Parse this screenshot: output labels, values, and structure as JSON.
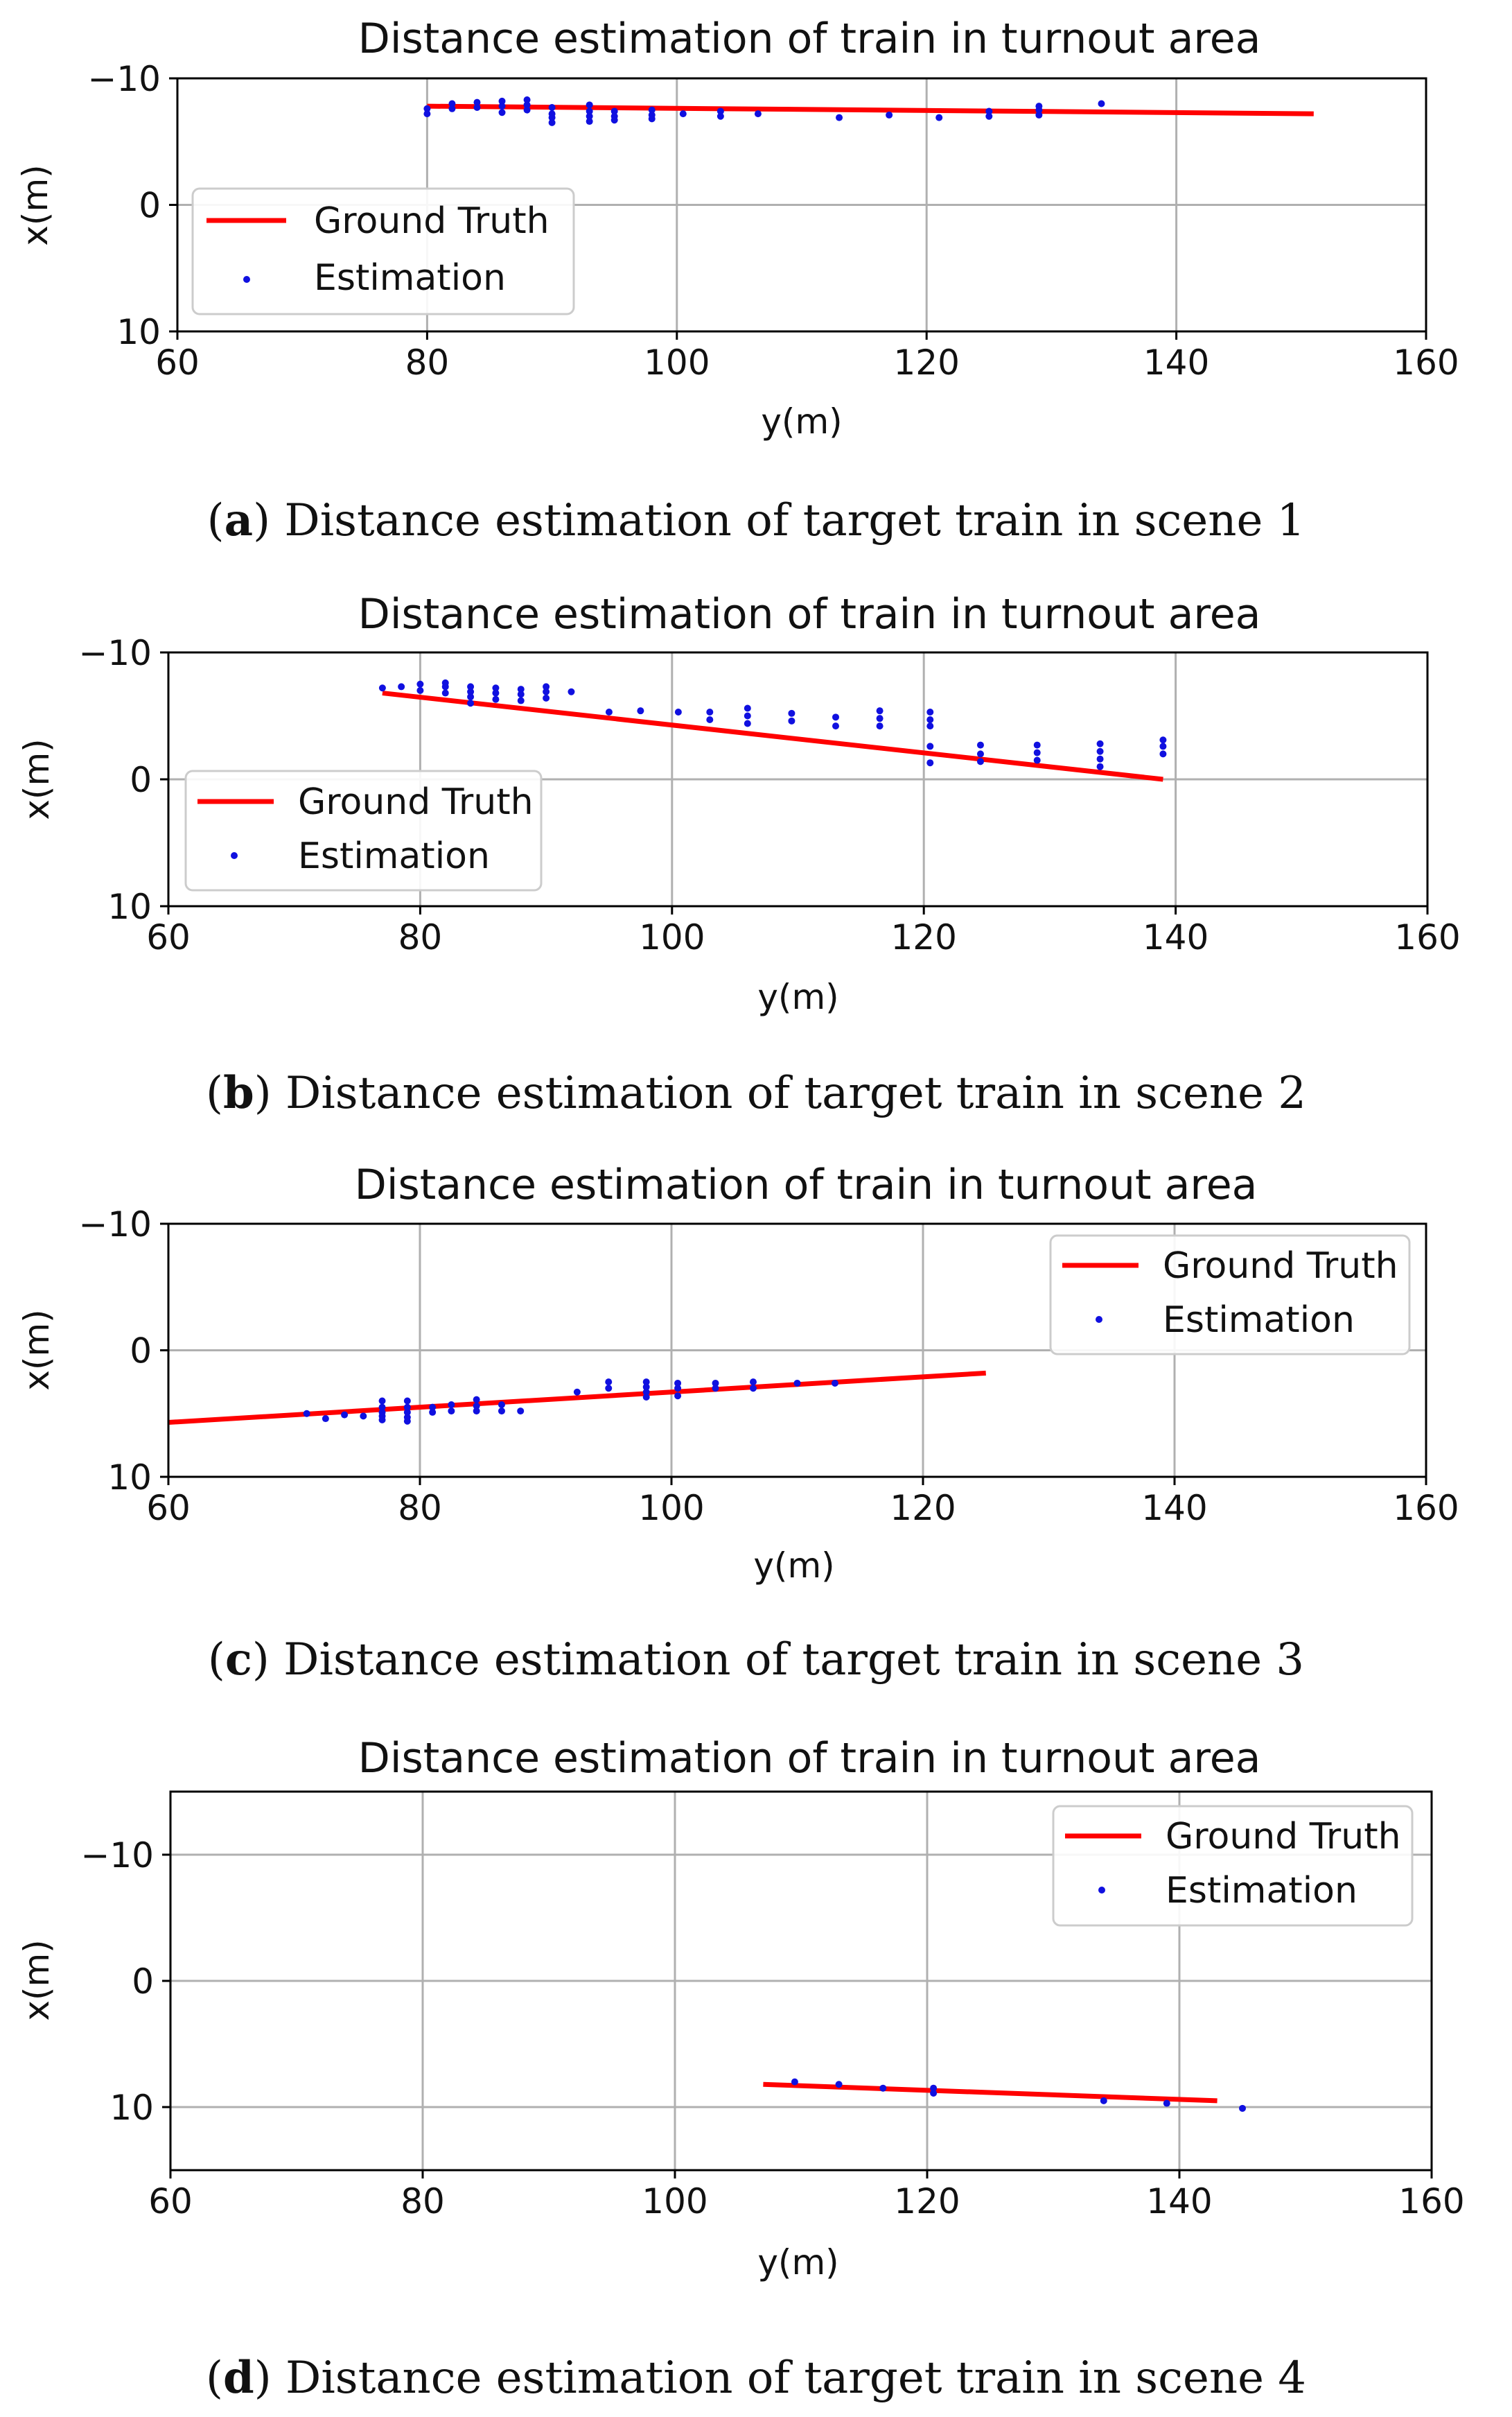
{
  "colors": {
    "ground_truth": "#ff0000",
    "estimation": "#1010e0",
    "grid": "#b0b0b0",
    "axis": "#000000"
  },
  "chart_data": [
    {
      "type": "scatter",
      "title": "Distance estimation of train in turnout area",
      "xlabel": "y(m)",
      "ylabel": "x(m)",
      "xlim": [
        60,
        160
      ],
      "ylim": [
        10,
        -10
      ],
      "xticks": [
        60,
        80,
        100,
        120,
        140,
        160
      ],
      "yticks": [
        -10,
        0,
        10
      ],
      "grid": true,
      "legend_position": "lower-left",
      "caption": {
        "label": "a",
        "text": "Distance estimation of target train in scene 1"
      },
      "series": [
        {
          "name": "Ground Truth",
          "kind": "line",
          "x": [
            80,
            151
          ],
          "y": [
            -7.8,
            -7.2
          ]
        },
        {
          "name": "Estimation",
          "kind": "scatter",
          "x": [
            80,
            80,
            82,
            82,
            84,
            84,
            86,
            86,
            86,
            88,
            88,
            88,
            90,
            90,
            90,
            90,
            93,
            93,
            93,
            93,
            95,
            95,
            95,
            98,
            98,
            98,
            100.5,
            103.5,
            103.5,
            106.5,
            113,
            117,
            121,
            125,
            125,
            129,
            129,
            129,
            134
          ],
          "y": [
            -7.2,
            -7.6,
            -7.6,
            -8.0,
            -7.7,
            -8.1,
            -7.3,
            -7.8,
            -8.2,
            -7.5,
            -7.9,
            -8.3,
            -6.5,
            -6.9,
            -7.2,
            -7.7,
            -6.6,
            -7.0,
            -7.4,
            -7.9,
            -6.7,
            -7.0,
            -7.4,
            -6.8,
            -7.1,
            -7.5,
            -7.2,
            -7.0,
            -7.4,
            -7.2,
            -6.9,
            -7.1,
            -6.9,
            -7.0,
            -7.4,
            -7.1,
            -7.5,
            -7.8,
            -8.0
          ]
        }
      ]
    },
    {
      "type": "scatter",
      "title": "Distance estimation of train in turnout area",
      "xlabel": "y(m)",
      "ylabel": "x(m)",
      "xlim": [
        60,
        160
      ],
      "ylim": [
        10,
        -10
      ],
      "xticks": [
        60,
        80,
        100,
        120,
        140,
        160
      ],
      "yticks": [
        -10,
        0,
        10
      ],
      "grid": true,
      "legend_position": "lower-left",
      "caption": {
        "label": "b",
        "text": "Distance estimation of target train in scene 2"
      },
      "series": [
        {
          "name": "Ground Truth",
          "kind": "line",
          "x": [
            77,
            139
          ],
          "y": [
            -6.8,
            0
          ]
        },
        {
          "name": "Estimation",
          "kind": "scatter",
          "x": [
            77,
            78.5,
            80,
            80,
            82,
            82,
            82,
            84,
            84,
            84,
            84,
            86,
            86,
            86,
            88,
            88,
            88,
            90,
            90,
            90,
            92,
            95,
            97.5,
            100.5,
            103,
            103,
            106,
            106,
            106,
            109.5,
            109.5,
            113,
            113,
            116.5,
            116.5,
            116.5,
            120.5,
            120.5,
            120.5,
            120.5,
            120.5,
            124.5,
            124.5,
            124.5,
            129,
            129,
            129,
            134,
            134,
            134,
            134,
            139,
            139,
            139
          ],
          "y": [
            -7.2,
            -7.3,
            -7.0,
            -7.5,
            -6.8,
            -7.3,
            -7.6,
            -6.0,
            -6.5,
            -6.9,
            -7.3,
            -6.3,
            -6.8,
            -7.2,
            -6.2,
            -6.7,
            -7.1,
            -6.4,
            -6.9,
            -7.3,
            -6.9,
            -5.3,
            -5.4,
            -5.3,
            -4.7,
            -5.3,
            -4.4,
            -5.0,
            -5.6,
            -4.6,
            -5.2,
            -4.2,
            -4.9,
            -4.2,
            -4.8,
            -5.4,
            -1.3,
            -2.6,
            -4.2,
            -4.7,
            -5.3,
            -1.4,
            -2.0,
            -2.7,
            -1.5,
            -2.1,
            -2.7,
            -1.0,
            -1.6,
            -2.2,
            -2.8,
            -2.0,
            -2.6,
            -3.1
          ]
        }
      ]
    },
    {
      "type": "scatter",
      "title": "Distance estimation of train in turnout area",
      "xlabel": "y(m)",
      "ylabel": "x(m)",
      "xlim": [
        60,
        160
      ],
      "ylim": [
        10,
        -10
      ],
      "xticks": [
        60,
        80,
        100,
        120,
        140,
        160
      ],
      "yticks": [
        -10,
        0,
        10
      ],
      "grid": true,
      "legend_position": "upper-right",
      "caption": {
        "label": "c",
        "text": "Distance estimation of target train in scene 3"
      },
      "series": [
        {
          "name": "Ground Truth",
          "kind": "line",
          "x": [
            60,
            125
          ],
          "y": [
            5.7,
            1.8
          ]
        },
        {
          "name": "Estimation",
          "kind": "scatter",
          "x": [
            71,
            72.5,
            74,
            75.5,
            77,
            77,
            77,
            77,
            77,
            79,
            79,
            79,
            79,
            79,
            81,
            81,
            82.5,
            82.5,
            84.5,
            84.5,
            84.5,
            86.5,
            86.5,
            88,
            92.5,
            95,
            95,
            98,
            98,
            98,
            98,
            100.5,
            100.5,
            100.5,
            103.5,
            103.5,
            106.5,
            106.5,
            110,
            113
          ],
          "y": [
            5.0,
            5.4,
            5.1,
            5.2,
            4.0,
            4.5,
            4.9,
            5.2,
            5.5,
            4.0,
            4.5,
            4.9,
            5.3,
            5.6,
            4.5,
            4.9,
            4.3,
            4.8,
            3.9,
            4.4,
            4.8,
            4.3,
            4.8,
            4.8,
            3.3,
            2.5,
            3.0,
            2.5,
            2.9,
            3.3,
            3.7,
            2.6,
            3.0,
            3.6,
            2.6,
            3.0,
            2.5,
            3.0,
            2.6,
            2.6
          ]
        }
      ]
    },
    {
      "type": "scatter",
      "title": "Distance estimation of train in turnout area",
      "xlabel": "y(m)",
      "ylabel": "x(m)",
      "xlim": [
        60,
        160
      ],
      "ylim": [
        15,
        -15
      ],
      "xticks": [
        60,
        80,
        100,
        120,
        140,
        160
      ],
      "yticks": [
        -10,
        0,
        10
      ],
      "grid": true,
      "legend_position": "upper-right",
      "caption": {
        "label": "d",
        "text": "Distance estimation of target train in scene 4"
      },
      "series": [
        {
          "name": "Ground Truth",
          "kind": "line",
          "x": [
            107,
            143
          ],
          "y": [
            8.2,
            9.5
          ]
        },
        {
          "name": "Estimation",
          "kind": "scatter",
          "x": [
            109.5,
            113,
            116.5,
            120.5,
            120.5,
            134,
            139,
            145
          ],
          "y": [
            8.0,
            8.2,
            8.5,
            8.5,
            8.9,
            9.5,
            9.7,
            10.1
          ]
        }
      ]
    }
  ]
}
